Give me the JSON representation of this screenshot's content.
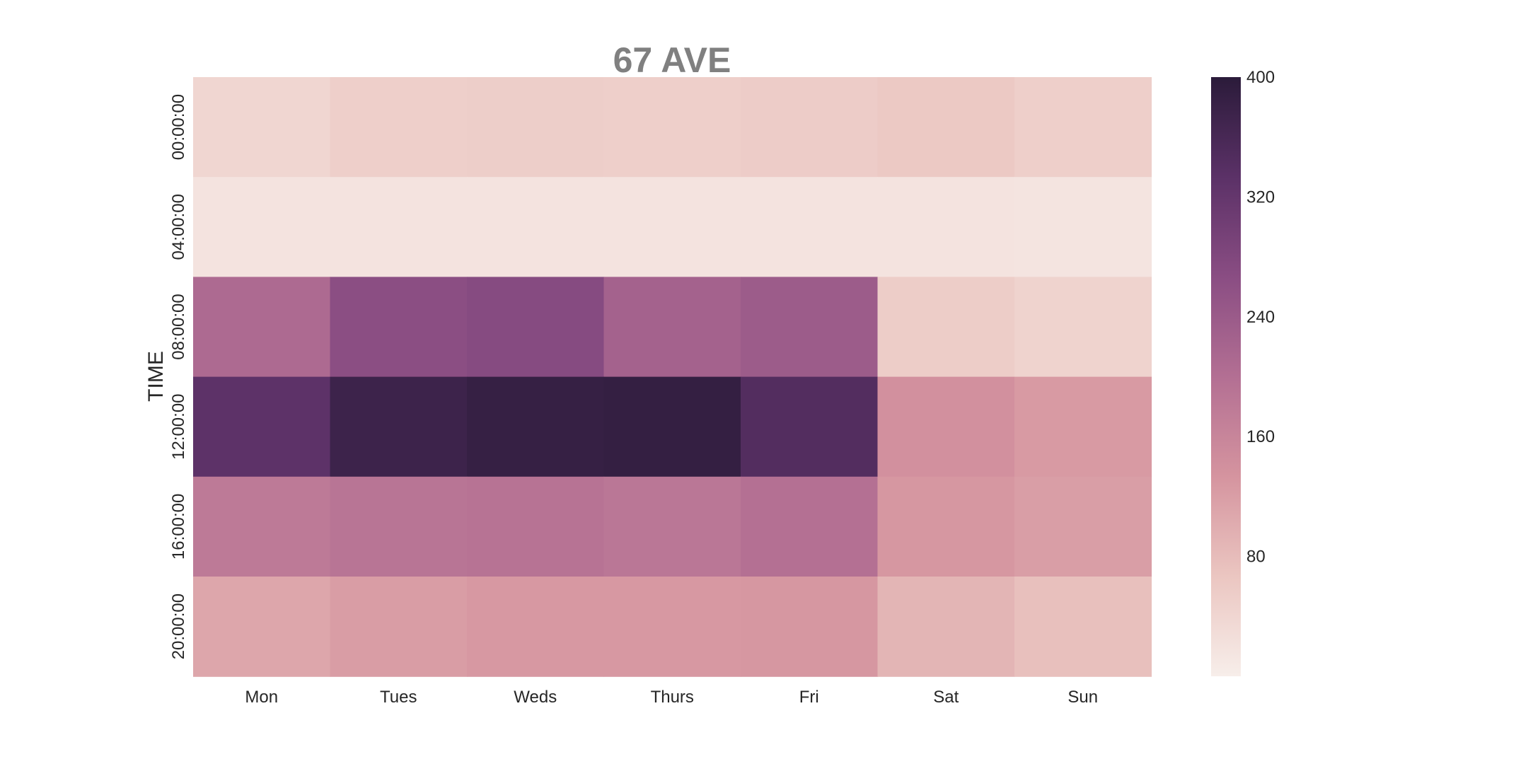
{
  "chart_data": {
    "type": "heatmap",
    "title": "67 AVE",
    "xlabel": "",
    "ylabel": "TIME",
    "x_categories": [
      "Mon",
      "Tues",
      "Weds",
      "Thurs",
      "Fri",
      "Sat",
      "Sun"
    ],
    "y_categories": [
      "00:00:00",
      "04:00:00",
      "08:00:00",
      "12:00:00",
      "16:00:00",
      "20:00:00"
    ],
    "values": [
      [
        40,
        52,
        54,
        52,
        56,
        62,
        52
      ],
      [
        18,
        18,
        18,
        18,
        18,
        18,
        17
      ],
      [
        210,
        265,
        272,
        225,
        238,
        55,
        45
      ],
      [
        330,
        375,
        385,
        388,
        345,
        140,
        125
      ],
      [
        180,
        190,
        192,
        186,
        198,
        130,
        120
      ],
      [
        110,
        122,
        128,
        128,
        130,
        90,
        75
      ]
    ],
    "vmin": 0,
    "vmax": 400,
    "colorbar_ticks": [
      80,
      160,
      240,
      320,
      400
    ],
    "colormap": [
      "#f7eeea",
      "#ebc6c1",
      "#d5949f",
      "#b36f93",
      "#8a4d83",
      "#5b3167",
      "#2b1b3a"
    ],
    "grid": false,
    "colorbar_position": "right"
  }
}
